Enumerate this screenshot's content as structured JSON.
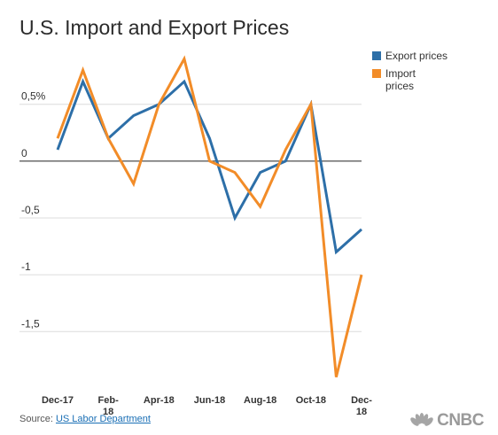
{
  "chart_data": {
    "type": "line",
    "title": "U.S. Import and Export Prices",
    "x": [
      "Dec-17",
      "Jan-18",
      "Feb-18",
      "Mar-18",
      "Apr-18",
      "May-18",
      "Jun-18",
      "Jul-18",
      "Aug-18",
      "Sep-18",
      "Oct-18",
      "Nov-18",
      "Dec-18"
    ],
    "x_tick_labels": [
      {
        "index": 0,
        "lines": [
          "Dec-17"
        ]
      },
      {
        "index": 2,
        "lines": [
          "Feb-",
          "18"
        ]
      },
      {
        "index": 4,
        "lines": [
          "Apr-18"
        ]
      },
      {
        "index": 6,
        "lines": [
          "Jun-18"
        ]
      },
      {
        "index": 8,
        "lines": [
          "Aug-18"
        ]
      },
      {
        "index": 10,
        "lines": [
          "Oct-18"
        ]
      },
      {
        "index": 12,
        "lines": [
          "Dec-",
          "18"
        ]
      }
    ],
    "y_ticks": [
      {
        "value": 0.5,
        "label": "0,5%"
      },
      {
        "value": 0,
        "label": "0"
      },
      {
        "value": -0.5,
        "label": "-0,5"
      },
      {
        "value": -1,
        "label": "-1"
      },
      {
        "value": -1.5,
        "label": "-1,5"
      }
    ],
    "ylim": [
      -1.95,
      0.95
    ],
    "grid": true,
    "legend_position": "top-right",
    "series": [
      {
        "name": "Export prices",
        "color": "#2d6fa8",
        "values": [
          0.1,
          0.7,
          0.2,
          0.4,
          0.5,
          0.7,
          0.2,
          -0.5,
          -0.1,
          0.0,
          0.5,
          -0.8,
          -0.6
        ]
      },
      {
        "name": "Import prices",
        "color": "#f28c28",
        "values": [
          0.2,
          0.8,
          0.2,
          -0.2,
          0.5,
          0.9,
          0.0,
          -0.1,
          -0.4,
          0.1,
          0.5,
          -1.9,
          -1.0
        ]
      }
    ]
  },
  "legend": {
    "items": [
      {
        "lines": [
          "Export prices"
        ],
        "color": "#2d6fa8"
      },
      {
        "lines": [
          "Import",
          "prices"
        ],
        "color": "#f28c28"
      }
    ]
  },
  "footer": {
    "source_prefix": "Source: ",
    "source_link": "US Labor Department",
    "logo_text": "CNBC"
  }
}
